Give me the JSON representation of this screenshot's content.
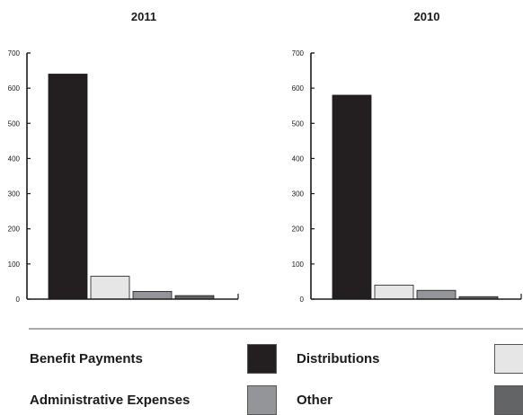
{
  "chart_data": [
    {
      "type": "bar",
      "title": "2011",
      "categories": [
        "Benefit Payments",
        "Distributions",
        "Administrative Expenses",
        "Other"
      ],
      "values": [
        640,
        65,
        22,
        10
      ],
      "ylim": [
        0,
        700
      ],
      "yticks": [
        0,
        100,
        200,
        300,
        400,
        500,
        600,
        700
      ],
      "xlabel": "",
      "ylabel": "",
      "grid": false
    },
    {
      "type": "bar",
      "title": "2010",
      "categories": [
        "Benefit Payments",
        "Distributions",
        "Administrative Expenses",
        "Other"
      ],
      "values": [
        580,
        40,
        25,
        7
      ],
      "ylim": [
        0,
        700
      ],
      "yticks": [
        0,
        100,
        200,
        300,
        400,
        500,
        600,
        700
      ],
      "xlabel": "",
      "ylabel": "",
      "grid": false
    }
  ],
  "legend": {
    "placement": "bottom",
    "items": [
      {
        "label": "Benefit Payments",
        "color": "#231f20"
      },
      {
        "label": "Distributions",
        "color": "#e6e6e6"
      },
      {
        "label": "Administrative Expenses",
        "color": "#939598"
      },
      {
        "label": "Other",
        "color": "#636466"
      }
    ]
  }
}
